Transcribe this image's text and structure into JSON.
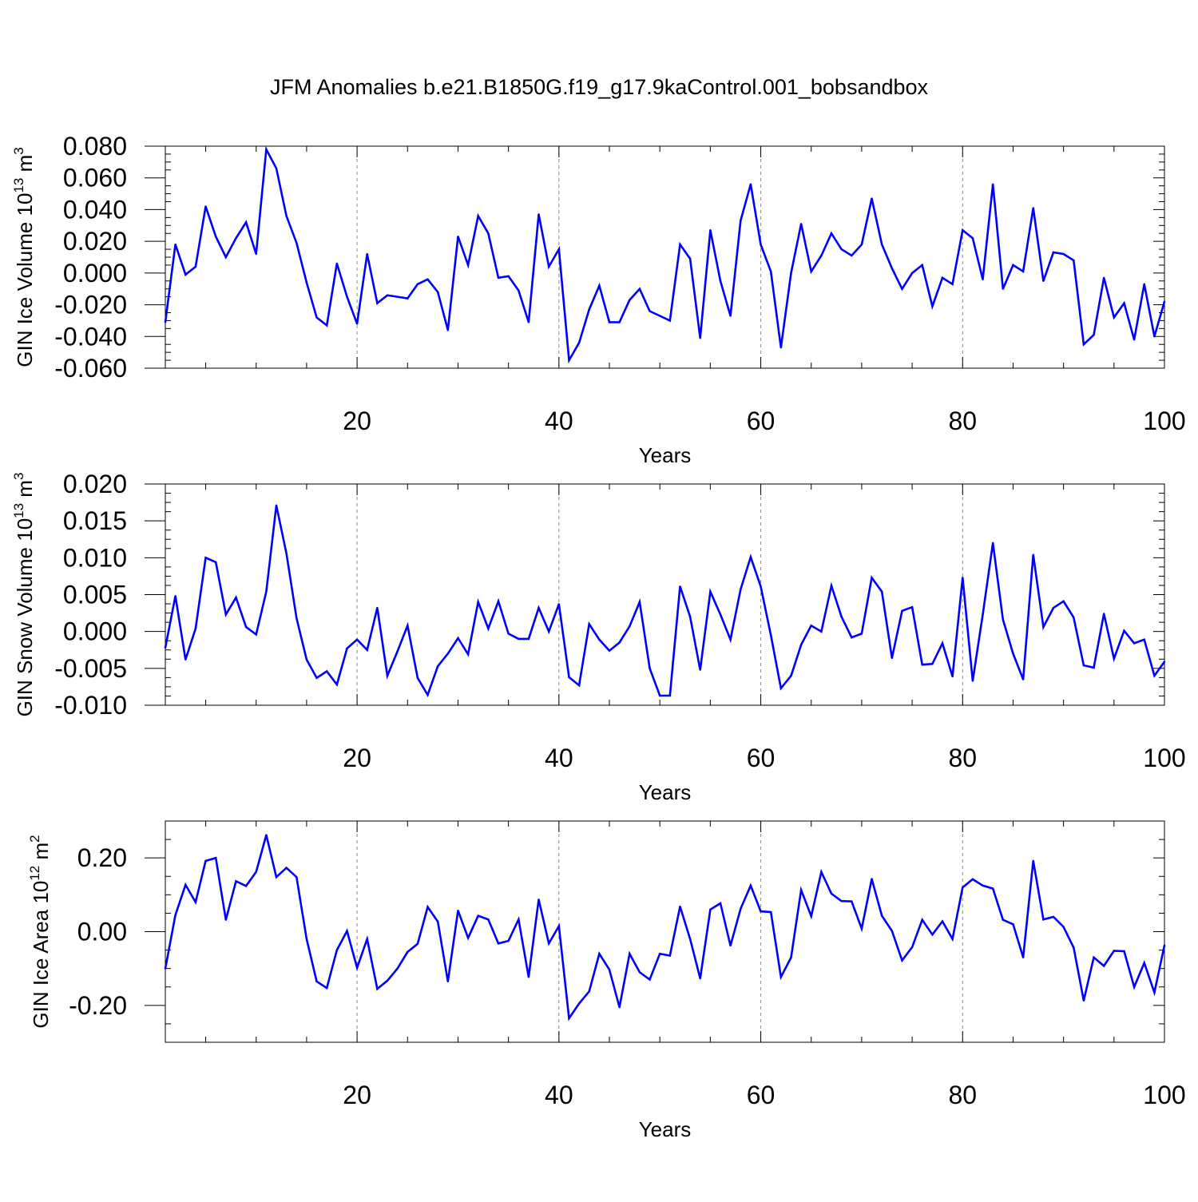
{
  "figure": {
    "title": "JFM Anomalies b.e21.B1850G.f19_g17.9kaControl.001_bobsandbox"
  },
  "colors": {
    "series": "#0000ff",
    "axis": "#000000",
    "grid": "#888888"
  },
  "chart_data": [
    {
      "type": "line",
      "title": "",
      "xlabel": "Years",
      "ylabel": {
        "base": "GIN Ice Volume 10",
        "exp": "13",
        "unit": " m",
        "unit_exp": "3"
      },
      "xlim": [
        1,
        100
      ],
      "ylim": [
        -0.06,
        0.08
      ],
      "xticks": [
        20,
        40,
        60,
        80,
        100
      ],
      "xtick_labels": [
        "20",
        "40",
        "60",
        "80",
        "100"
      ],
      "yticks": [
        -0.06,
        -0.04,
        -0.02,
        0.0,
        0.02,
        0.04,
        0.06,
        0.08
      ],
      "ytick_labels": [
        "-0.060",
        "-0.040",
        "-0.020",
        "0.000",
        "0.020",
        "0.040",
        "0.060",
        "0.080"
      ],
      "vgrid": [
        20,
        40,
        60,
        80
      ],
      "series": [
        {
          "name": "GIN Ice Volume",
          "x_start": 1,
          "values": [
            -0.031,
            0.018,
            -0.001,
            0.004,
            0.042,
            0.023,
            0.01,
            0.022,
            0.032,
            0.012,
            0.078,
            0.066,
            0.036,
            0.019,
            -0.006,
            -0.028,
            -0.033,
            0.006,
            -0.015,
            -0.032,
            0.012,
            -0.019,
            -0.014,
            -0.015,
            -0.016,
            -0.007,
            -0.004,
            -0.012,
            -0.036,
            0.023,
            0.005,
            0.036,
            0.025,
            -0.003,
            -0.002,
            -0.011,
            -0.031,
            0.037,
            0.004,
            0.015,
            -0.055,
            -0.044,
            -0.023,
            -0.008,
            -0.031,
            -0.031,
            -0.017,
            -0.01,
            -0.024,
            -0.027,
            -0.03,
            0.018,
            0.009,
            -0.041,
            0.027,
            -0.005,
            -0.027,
            0.033,
            0.056,
            0.018,
            0.001,
            -0.047,
            0.0,
            0.031,
            0.001,
            0.011,
            0.025,
            0.015,
            0.011,
            0.018,
            0.047,
            0.018,
            0.003,
            -0.01,
            0.0,
            0.005,
            -0.021,
            -0.003,
            -0.007,
            0.027,
            0.022,
            -0.004,
            0.056,
            -0.01,
            0.005,
            0.001,
            0.041,
            -0.005,
            0.013,
            0.012,
            0.008,
            -0.045,
            -0.039,
            -0.003,
            -0.028,
            -0.019,
            -0.042,
            -0.007,
            -0.04,
            -0.018
          ]
        }
      ]
    },
    {
      "type": "line",
      "title": "",
      "xlabel": "Years",
      "ylabel": {
        "base": "GIN Snow Volume 10",
        "exp": "13",
        "unit": " m",
        "unit_exp": "3"
      },
      "xlim": [
        1,
        100
      ],
      "ylim": [
        -0.01,
        0.02
      ],
      "xticks": [
        20,
        40,
        60,
        80,
        100
      ],
      "xtick_labels": [
        "20",
        "40",
        "60",
        "80",
        "100"
      ],
      "yticks": [
        -0.01,
        -0.005,
        0.0,
        0.005,
        0.01,
        0.015,
        0.02
      ],
      "ytick_labels": [
        "-0.010",
        "-0.005",
        "0.000",
        "0.005",
        "0.010",
        "0.015",
        "0.020"
      ],
      "vgrid": [
        20,
        40,
        60,
        80
      ],
      "series": [
        {
          "name": "GIN Snow Volume",
          "x_start": 1,
          "values": [
            -0.0022,
            0.0048,
            -0.0038,
            0.0004,
            0.01,
            0.0094,
            0.0023,
            0.0046,
            0.0006,
            -0.0004,
            0.0054,
            0.0171,
            0.0106,
            0.0018,
            -0.0038,
            -0.0063,
            -0.0054,
            -0.0072,
            -0.0023,
            -0.0011,
            -0.0025,
            0.0032,
            -0.006,
            -0.0027,
            0.0008,
            -0.0063,
            -0.0086,
            -0.0047,
            -0.003,
            -0.0009,
            -0.0031,
            0.004,
            0.0004,
            0.0041,
            -0.0003,
            -0.001,
            -0.001,
            0.0032,
            0.0,
            0.0037,
            -0.0062,
            -0.0073,
            0.001,
            -0.0011,
            -0.0026,
            -0.0015,
            0.0007,
            0.004,
            -0.005,
            -0.0087,
            -0.0087,
            0.0061,
            0.002,
            -0.0052,
            0.0054,
            0.0023,
            -0.0011,
            0.0057,
            0.0101,
            0.0061,
            -0.0005,
            -0.0077,
            -0.006,
            -0.0018,
            0.0008,
            0.0,
            0.0062,
            0.002,
            -0.0008,
            -0.0003,
            0.0073,
            0.0054,
            -0.0036,
            0.0028,
            0.0033,
            -0.0045,
            -0.0044,
            -0.0016,
            -0.0061,
            0.0073,
            -0.0067,
            0.0023,
            0.012,
            0.0016,
            -0.003,
            -0.0065,
            0.0104,
            0.0006,
            0.0032,
            0.0041,
            0.0019,
            -0.0046,
            -0.0049,
            0.0024,
            -0.0037,
            0.0001,
            -0.0016,
            -0.0011,
            -0.006,
            -0.0041
          ]
        }
      ]
    },
    {
      "type": "line",
      "title": "",
      "xlabel": "Years",
      "ylabel": {
        "base": "GIN Ice Area 10",
        "exp": "12",
        "unit": " m",
        "unit_exp": "2"
      },
      "xlim": [
        1,
        100
      ],
      "ylim": [
        -0.3,
        0.3
      ],
      "xticks": [
        20,
        40,
        60,
        80,
        100
      ],
      "xtick_labels": [
        "20",
        "40",
        "60",
        "80",
        "100"
      ],
      "yticks": [
        -0.2,
        0.0,
        0.2
      ],
      "ytick_labels": [
        "-0.20",
        "0.00",
        "0.20"
      ],
      "vgrid": [
        20,
        40,
        60,
        80
      ],
      "series": [
        {
          "name": "GIN Ice Area",
          "x_start": 1,
          "values": [
            -0.1,
            0.045,
            0.127,
            0.08,
            0.192,
            0.2,
            0.032,
            0.137,
            0.124,
            0.162,
            0.262,
            0.148,
            0.173,
            0.148,
            -0.02,
            -0.135,
            -0.153,
            -0.05,
            0.002,
            -0.098,
            -0.02,
            -0.155,
            -0.133,
            -0.1,
            -0.055,
            -0.033,
            0.067,
            0.027,
            -0.135,
            0.057,
            -0.017,
            0.043,
            0.033,
            -0.032,
            -0.025,
            0.033,
            -0.123,
            0.087,
            -0.032,
            0.015,
            -0.235,
            -0.195,
            -0.162,
            -0.06,
            -0.103,
            -0.205,
            -0.06,
            -0.11,
            -0.13,
            -0.06,
            -0.065,
            0.068,
            -0.02,
            -0.127,
            0.06,
            0.077,
            -0.038,
            0.062,
            0.125,
            0.055,
            0.053,
            -0.123,
            -0.07,
            0.113,
            0.042,
            0.162,
            0.103,
            0.083,
            0.082,
            0.008,
            0.143,
            0.043,
            0.002,
            -0.078,
            -0.042,
            0.032,
            -0.008,
            0.028,
            -0.02,
            0.12,
            0.142,
            0.125,
            0.117,
            0.032,
            0.02,
            -0.07,
            0.192,
            0.033,
            0.04,
            0.013,
            -0.043,
            -0.187,
            -0.07,
            -0.093,
            -0.052,
            -0.053,
            -0.15,
            -0.085,
            -0.165,
            -0.037
          ]
        }
      ]
    }
  ]
}
